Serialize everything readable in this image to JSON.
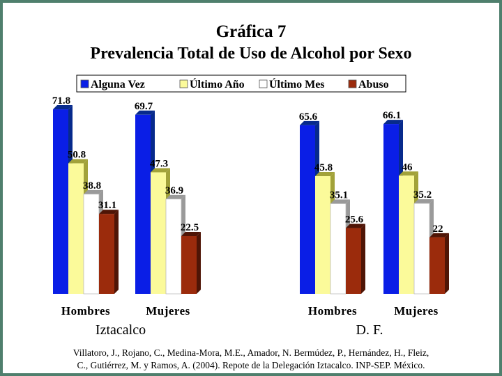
{
  "chart_data": {
    "type": "bar",
    "title": "Gráfica 7",
    "subtitle": "Prevalencia Total de Uso de Alcohol por Sexo",
    "groups": [
      {
        "label": "Iztacalco",
        "categories": [
          {
            "label": "Hombres",
            "values": [
              71.8,
              50.8,
              38.8,
              31.1
            ]
          },
          {
            "label": "Mujeres",
            "values": [
              69.7,
              47.3,
              36.9,
              22.5
            ]
          }
        ]
      },
      {
        "label": "D. F.",
        "categories": [
          {
            "label": "Hombres",
            "values": [
              65.6,
              45.8,
              35.1,
              25.6
            ]
          },
          {
            "label": "Mujeres",
            "values": [
              66.1,
              46,
              35.2,
              22
            ]
          }
        ]
      }
    ],
    "series": [
      {
        "name": "Alguna Vez",
        "color": "#0a1ee6",
        "side": "#072a8c"
      },
      {
        "name": "Último Año",
        "color": "#fbfa9a",
        "side": "#a2a23a"
      },
      {
        "name": "Último Mes",
        "color": "#ffffff",
        "side": "#9a9a9a"
      },
      {
        "name": "Abuso",
        "color": "#9b2b0c",
        "side": "#4f1506"
      }
    ],
    "ylim": [
      0,
      100
    ],
    "legend_position": "top",
    "grid": false
  },
  "citation": {
    "line1": "Villatoro, J., Rojano, C., Medina-Mora, M.E., Amador, N. Bermúdez, P., Hernández, H., Fleiz,",
    "line2": "C., Gutiérrez, M. y Ramos, A. (2004). Repote de la Delegación Iztacalco. INP-SEP. México."
  }
}
